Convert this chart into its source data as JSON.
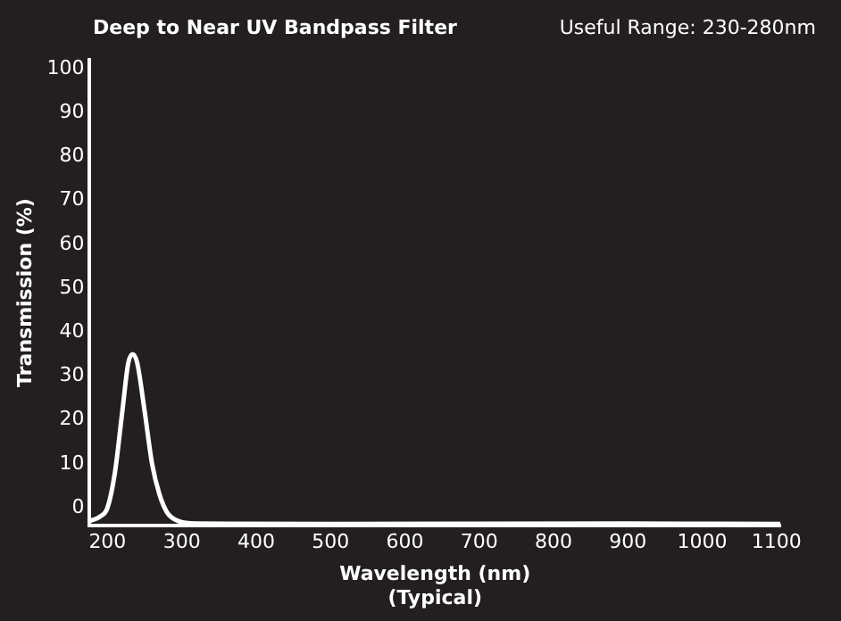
{
  "chart_data": {
    "type": "line",
    "title": "Deep to Near UV Bandpass Filter",
    "annotations": [
      "Useful Range: 230-280nm"
    ],
    "xlabel": "Wavelength (nm)\n(Typical)",
    "ylabel": "Transmission (%)",
    "series": [
      {
        "color": "#ffffff",
        "x": [
          176,
          190,
          200,
          210,
          220,
          228,
          234,
          240,
          250,
          260,
          270,
          280,
          295,
          320,
          500,
          900,
          1105
        ],
        "values": [
          -3,
          -2,
          0,
          8,
          22,
          33,
          35,
          33,
          22,
          10,
          3,
          -1,
          -3,
          -3.6,
          -3.7,
          -3.6,
          -3.7
        ]
      }
    ],
    "xlim": [
      176,
      1105
    ],
    "xticks": [
      200,
      300,
      400,
      500,
      600,
      700,
      800,
      900,
      1000,
      1100
    ],
    "ylim": [
      -4,
      102
    ],
    "yticks": [
      0,
      10,
      20,
      30,
      40,
      50,
      60,
      70,
      80,
      90,
      100
    ],
    "grid": false,
    "legend": false,
    "marker": "none",
    "line_style": "solid"
  }
}
